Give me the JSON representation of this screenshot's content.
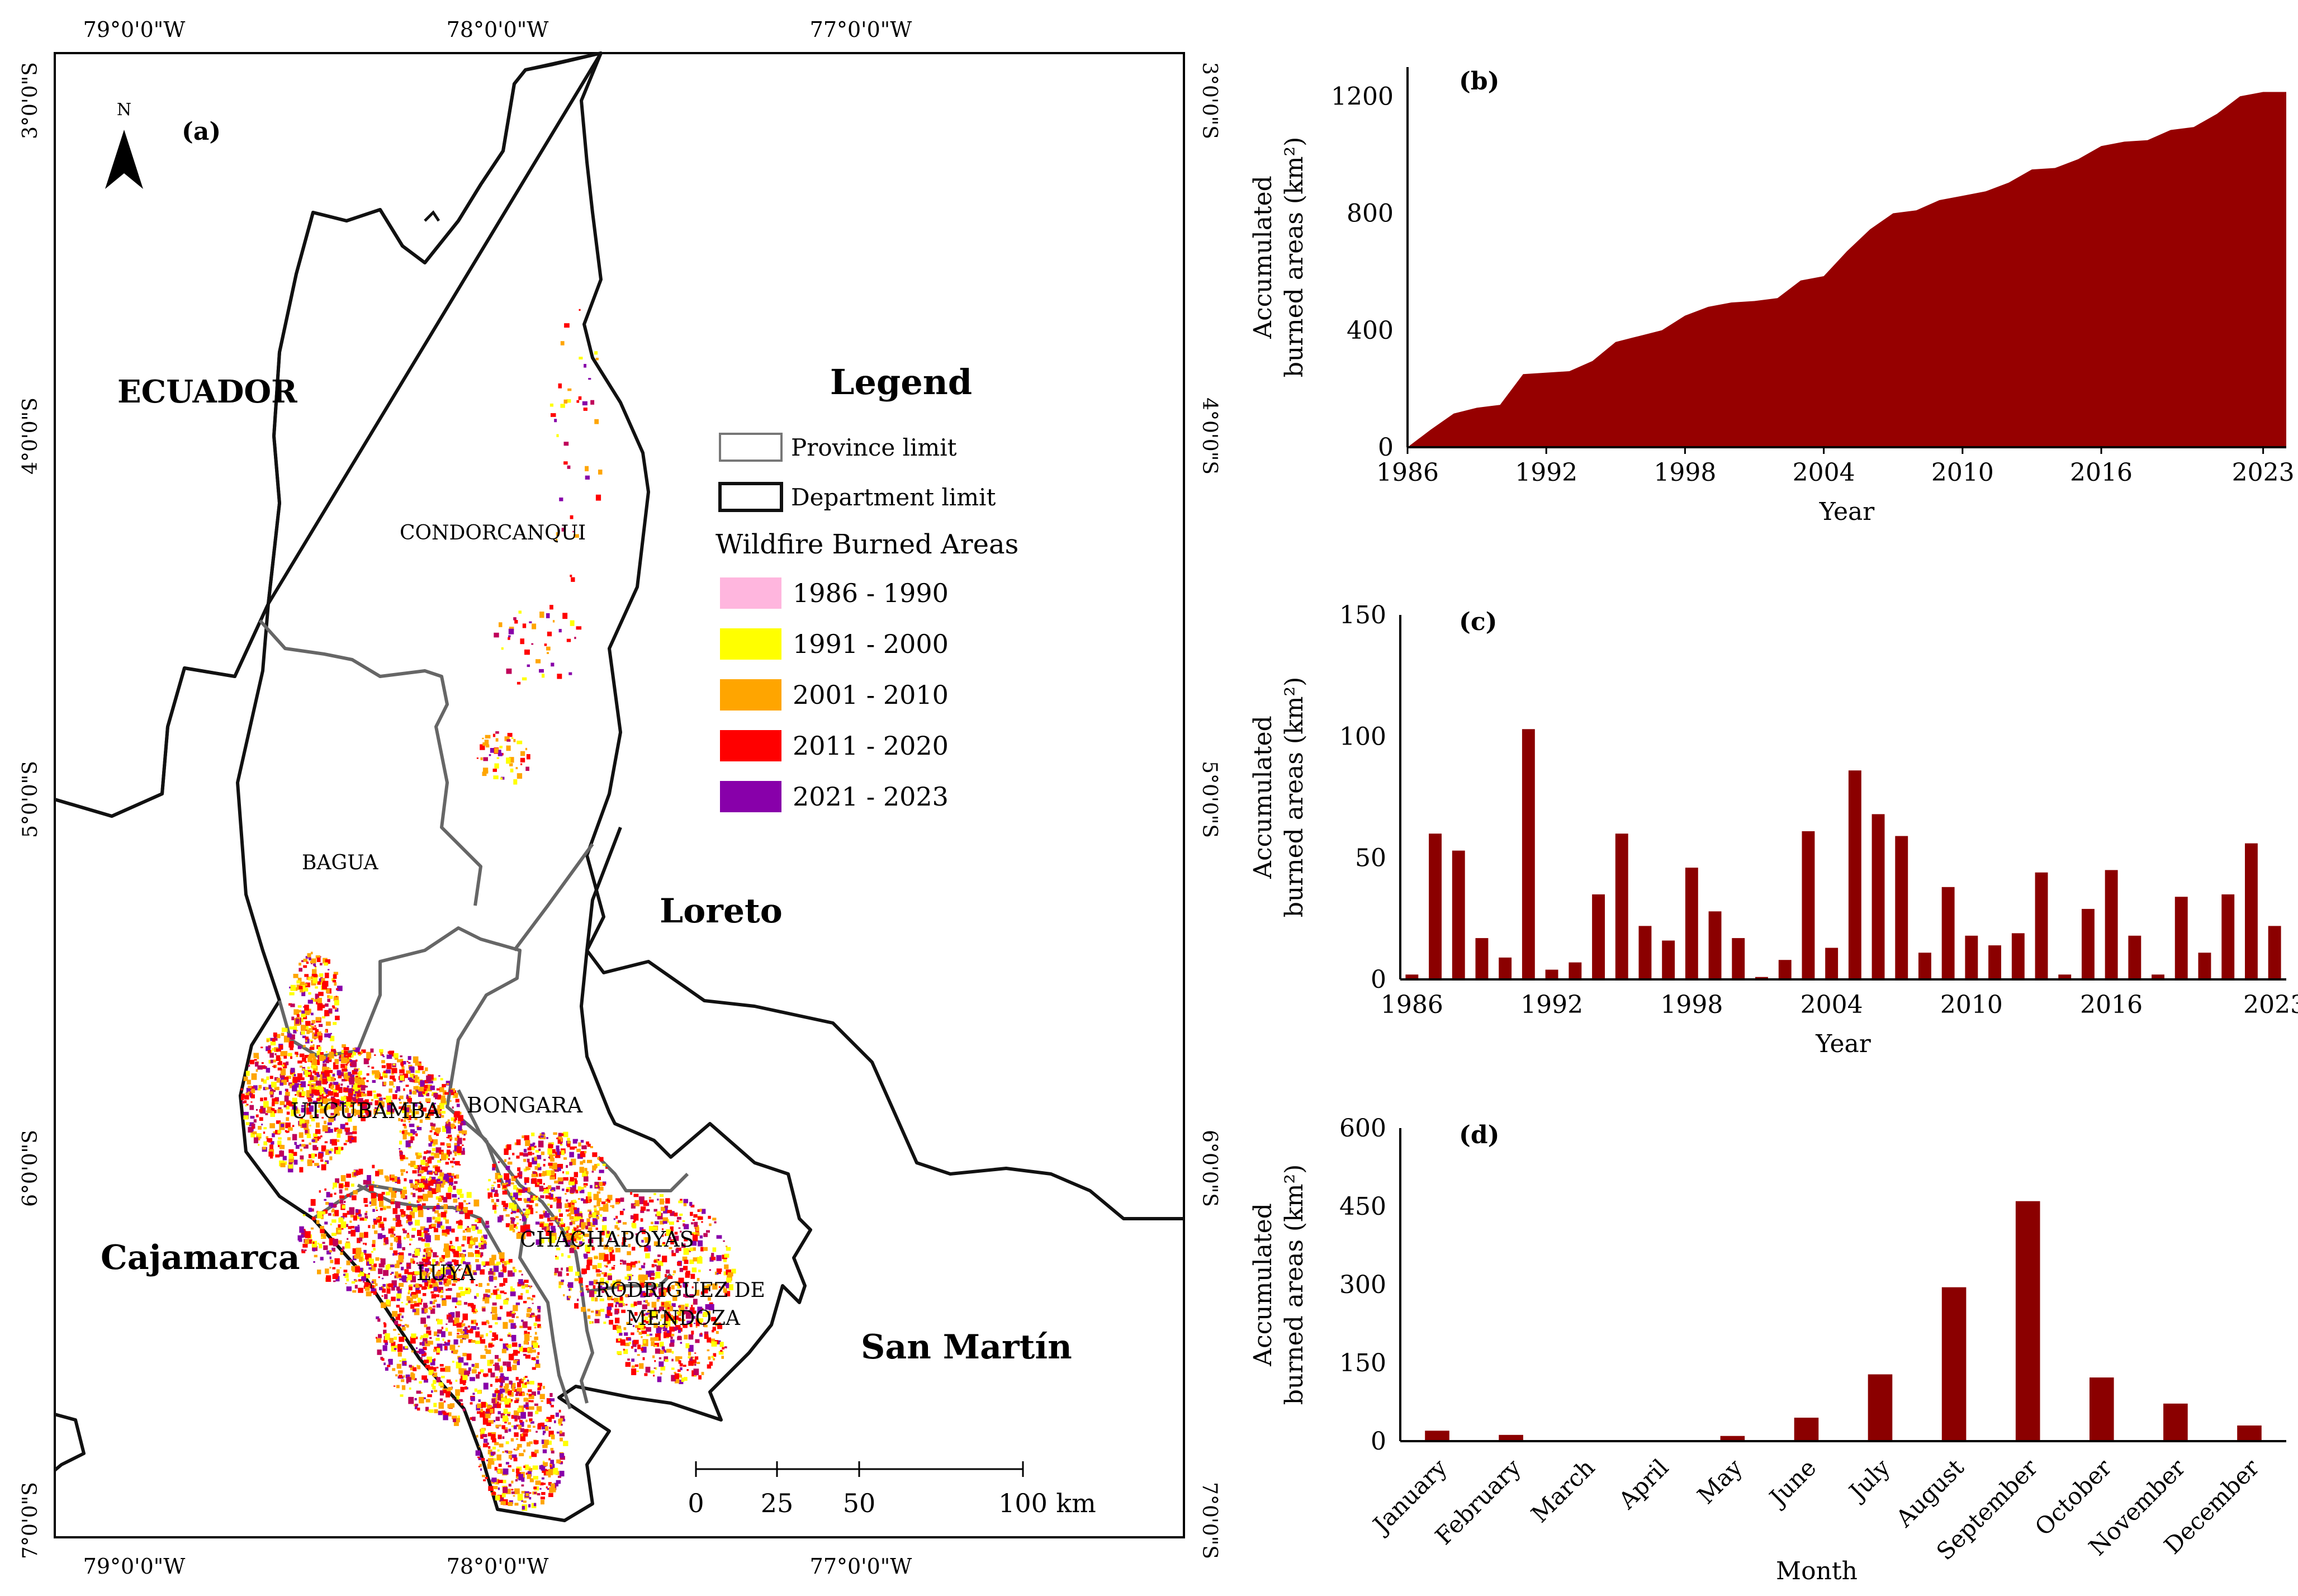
{
  "colors": {
    "bar": "#8b0000",
    "area": "#960000",
    "p1986": "#ffb6de",
    "p1991": "#ffff00",
    "p2001": "#ffa500",
    "p2011": "#ff0000",
    "p2021": "#8800aa"
  },
  "map": {
    "panel_label": "(a)",
    "north_label": "N",
    "north_icon": "north-arrow-icon",
    "coords": {
      "lon": [
        "79°0'0\"W",
        "78°0'0\"W",
        "77°0'0\"W"
      ],
      "lat": [
        "3°0'0\"S",
        "4°0'0\"S",
        "5°0'0\"S",
        "6°0'0\"S",
        "7°0'0\"S"
      ]
    },
    "regions": {
      "ecuador": "ECUADOR",
      "loreto": "Loreto",
      "cajamarca": "Cajamarca",
      "san_martin": "San Martín"
    },
    "provinces": {
      "condorcanqui": "CONDORCANQUI",
      "bagua": "BAGUA",
      "utcubamba": "UTCUBAMBA",
      "bongara": "BONGARA",
      "chachapoyas": "CHACHAPOYAS",
      "luya": "LUYA",
      "rodriguez1": "RODRIGUEZ DE",
      "rodriguez2": "MENDOZA"
    },
    "legend": {
      "title": "Legend",
      "province_limit": "Province limit",
      "department_limit": "Department limit",
      "burned_title": "Wildfire Burned Areas",
      "periods": [
        "1986 - 1990",
        "1991 - 2000",
        "2001 - 2010",
        "2011 - 2020",
        "2021 - 2023"
      ]
    },
    "scale": {
      "ticks": [
        "0",
        "25",
        "50",
        "100"
      ],
      "unit": "km"
    }
  },
  "chart_data": [
    {
      "id": "b",
      "type": "area",
      "panel_label": "(b)",
      "title": "",
      "xlabel": "Year",
      "ylabel_line1": "Accumulated",
      "ylabel_line2": "burned areas (km²)",
      "x": [
        1986,
        1987,
        1988,
        1989,
        1990,
        1991,
        1992,
        1993,
        1994,
        1995,
        1996,
        1997,
        1998,
        1999,
        2000,
        2001,
        2002,
        2003,
        2004,
        2005,
        2006,
        2007,
        2008,
        2009,
        2010,
        2011,
        2012,
        2013,
        2014,
        2015,
        2016,
        2017,
        2018,
        2019,
        2020,
        2021,
        2022,
        2023,
        2024
      ],
      "values": [
        0,
        60,
        115,
        135,
        145,
        250,
        255,
        260,
        295,
        360,
        380,
        400,
        450,
        480,
        495,
        500,
        510,
        570,
        585,
        670,
        745,
        800,
        810,
        845,
        860,
        875,
        905,
        950,
        955,
        985,
        1030,
        1045,
        1050,
        1085,
        1095,
        1140,
        1200,
        1215,
        1215
      ],
      "xticks": [
        "1986",
        "1992",
        "1998",
        "2004",
        "2010",
        "2016",
        "2023"
      ],
      "xtick_values": [
        1986,
        1992,
        1998,
        2004,
        2010,
        2016,
        2023
      ],
      "yticks": [
        "0",
        "400",
        "800",
        "1200"
      ],
      "ylim": [
        0,
        1300
      ],
      "xlim": [
        1986,
        2024
      ]
    },
    {
      "id": "c",
      "type": "bar",
      "panel_label": "(c)",
      "title": "",
      "xlabel": "Year",
      "ylabel_line1": "Accumulated",
      "ylabel_line2": "burned areas (km²)",
      "x": [
        1986,
        1987,
        1988,
        1989,
        1990,
        1991,
        1992,
        1993,
        1994,
        1995,
        1996,
        1997,
        1998,
        1999,
        2000,
        2001,
        2002,
        2003,
        2004,
        2005,
        2006,
        2007,
        2008,
        2009,
        2010,
        2011,
        2012,
        2013,
        2014,
        2015,
        2016,
        2017,
        2018,
        2019,
        2020,
        2021,
        2022,
        2023
      ],
      "values": [
        2,
        60,
        53,
        17,
        9,
        103,
        4,
        7,
        35,
        60,
        22,
        16,
        46,
        28,
        17,
        1,
        8,
        61,
        13,
        86,
        68,
        59,
        11,
        38,
        18,
        14,
        19,
        44,
        2,
        29,
        45,
        18,
        2,
        34,
        11,
        35,
        56,
        22
      ],
      "xticks": [
        "1986",
        "1992",
        "1998",
        "2004",
        "2010",
        "2016",
        "2023"
      ],
      "xtick_values": [
        1986,
        1992,
        1998,
        2004,
        2010,
        2016,
        2023
      ],
      "yticks": [
        "0",
        "50",
        "100",
        "150"
      ],
      "ylim": [
        0,
        150
      ]
    },
    {
      "id": "d",
      "type": "bar",
      "panel_label": "(d)",
      "title": "",
      "xlabel": "Month",
      "ylabel_line1": "Accumulated",
      "ylabel_line2": "burned areas (km²)",
      "categories": [
        "January",
        "February",
        "March",
        "April",
        "May",
        "June",
        "July",
        "August",
        "September",
        "October",
        "November",
        "December"
      ],
      "values": [
        20,
        12,
        0,
        0,
        10,
        45,
        128,
        295,
        460,
        122,
        72,
        30
      ],
      "yticks": [
        "0",
        "150",
        "300",
        "450",
        "600"
      ],
      "ylim": [
        0,
        600
      ]
    }
  ]
}
